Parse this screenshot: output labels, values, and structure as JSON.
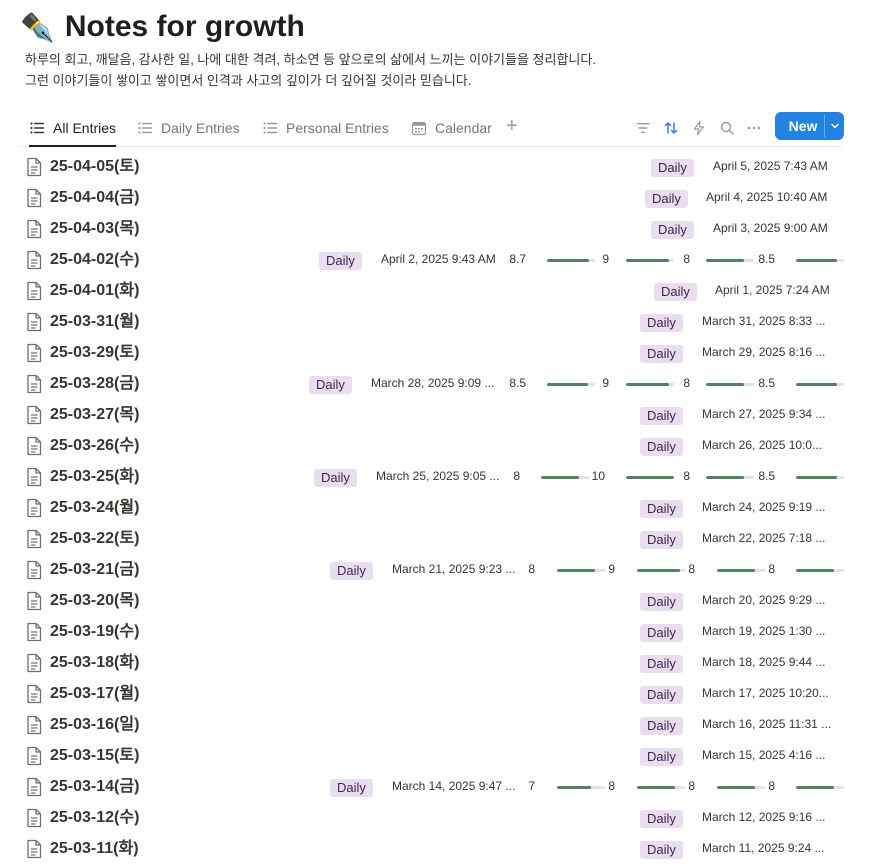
{
  "page": {
    "emoji": "✒️",
    "title": "Notes for growth",
    "description_1": "하루의 회고, 깨달음, 감사한 일, 나에 대한 격려, 하소연 등 앞으로의 삶에서 느끼는 이야기들을 정리합니다.",
    "description_2": "그런 이야기들이 쌓이고 쌓이면서 인격과 사고의 깊이가 더 깊어질 것이라 믿습니다."
  },
  "tabs": [
    {
      "label": "All Entries",
      "icon": "list-icon",
      "active": true
    },
    {
      "label": "Daily Entries",
      "icon": "list-icon",
      "active": false
    },
    {
      "label": "Personal Entries",
      "icon": "list-icon",
      "active": false
    },
    {
      "label": "Calendar",
      "icon": "calendar-icon",
      "active": false
    }
  ],
  "toolbar": {
    "add_tab": "+",
    "new_label": "New",
    "accent": "#2383e2"
  },
  "colors": {
    "badge_bg": "#e8deee",
    "badge_text": "#412454",
    "bar_fill": "#548164",
    "bar_track": "#e3e2e0"
  },
  "rows": [
    {
      "name": "25-04-05(토)",
      "tag": "Daily",
      "date": "April 5, 2025 7:43 AM"
    },
    {
      "name": "25-04-04(금)",
      "tag": "Daily",
      "date": "April 4, 2025 10:40 AM"
    },
    {
      "name": "25-04-03(목)",
      "tag": "Daily",
      "date": "April 3, 2025 9:00 AM"
    },
    {
      "name": "25-04-02(수)",
      "tag": "Daily",
      "date": "April 2, 2025 9:43 AM",
      "scores": [
        "8.7",
        "9",
        "8",
        "8.5"
      ]
    },
    {
      "name": "25-04-01(화)",
      "tag": "Daily",
      "date": "April 1, 2025 7:24 AM"
    },
    {
      "name": "25-03-31(월)",
      "tag": "Daily",
      "date": "March 31, 2025 8:33 ..."
    },
    {
      "name": "25-03-29(토)",
      "tag": "Daily",
      "date": "March 29, 2025 8:16 ..."
    },
    {
      "name": "25-03-28(금)",
      "tag": "Daily",
      "date": "March 28, 2025 9:09 ...",
      "scores": [
        "8.5",
        "9",
        "8",
        "8.5"
      ]
    },
    {
      "name": "25-03-27(목)",
      "tag": "Daily",
      "date": "March 27, 2025 9:34 ..."
    },
    {
      "name": "25-03-26(수)",
      "tag": "Daily",
      "date": "March 26, 2025 10:0..."
    },
    {
      "name": "25-03-25(화)",
      "tag": "Daily",
      "date": "March 25, 2025 9:05 ...",
      "scores": [
        "8",
        "10",
        "8",
        "8.5"
      ]
    },
    {
      "name": "25-03-24(월)",
      "tag": "Daily",
      "date": "March 24, 2025 9:19 ..."
    },
    {
      "name": "25-03-22(토)",
      "tag": "Daily",
      "date": "March 22, 2025 7:18 ..."
    },
    {
      "name": "25-03-21(금)",
      "tag": "Daily",
      "date": "March 21, 2025 9:23 ...",
      "scores": [
        "8",
        "9",
        "8",
        "8"
      ]
    },
    {
      "name": "25-03-20(목)",
      "tag": "Daily",
      "date": "March 20, 2025 9:29 ..."
    },
    {
      "name": "25-03-19(수)",
      "tag": "Daily",
      "date": "March 19, 2025 1:30 ..."
    },
    {
      "name": "25-03-18(화)",
      "tag": "Daily",
      "date": "March 18, 2025 9:44 ..."
    },
    {
      "name": "25-03-17(월)",
      "tag": "Daily",
      "date": "March 17, 2025 10:20..."
    },
    {
      "name": "25-03-16(일)",
      "tag": "Daily",
      "date": "March 16, 2025 11:31 ..."
    },
    {
      "name": "25-03-15(토)",
      "tag": "Daily",
      "date": "March 15, 2025 4:16 ..."
    },
    {
      "name": "25-03-14(금)",
      "tag": "Daily",
      "date": "March 14, 2025 9:47 ...",
      "scores": [
        "7",
        "8",
        "8",
        "8"
      ]
    },
    {
      "name": "25-03-12(수)",
      "tag": "Daily",
      "date": "March 12, 2025 9:16 ..."
    },
    {
      "name": "25-03-11(화)",
      "tag": "Daily",
      "date": "March 11, 2025 9:24 ..."
    }
  ]
}
